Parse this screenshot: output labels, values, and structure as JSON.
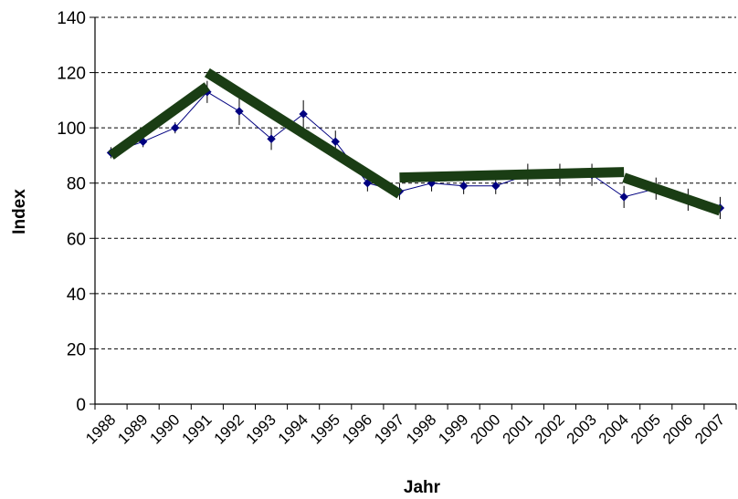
{
  "chart_data": {
    "type": "line",
    "title": "",
    "xlabel": "Jahr",
    "ylabel": "Index",
    "ylim": [
      0,
      140
    ],
    "yticks": [
      0,
      20,
      40,
      60,
      80,
      100,
      120,
      140
    ],
    "grid": "horizontal dashed",
    "categories": [
      "1988",
      "1989",
      "1990",
      "1991",
      "1992",
      "1993",
      "1994",
      "1995",
      "1996",
      "1997",
      "1998",
      "1999",
      "2000",
      "2001",
      "2002",
      "2003",
      "2004",
      "2005",
      "2006",
      "2007"
    ],
    "series": [
      {
        "values": [
          91,
          95,
          100,
          113,
          106,
          96,
          105,
          95,
          80,
          77,
          80,
          79,
          79,
          83,
          83,
          83,
          75,
          78,
          74,
          71
        ],
        "error": [
          2,
          2,
          2,
          4,
          5,
          4,
          5,
          4,
          3,
          3,
          3,
          3,
          3,
          4,
          4,
          4,
          4,
          4,
          4,
          4
        ],
        "color": "#000080",
        "marker": "diamond"
      }
    ],
    "trend_segments": [
      {
        "from": [
          "1988",
          90
        ],
        "to": [
          "1991",
          115
        ]
      },
      {
        "from": [
          "1991",
          120
        ],
        "to": [
          "1997",
          76
        ]
      },
      {
        "from": [
          "1997",
          82
        ],
        "to": [
          "2004",
          84
        ]
      },
      {
        "from": [
          "2004",
          82
        ],
        "to": [
          "2007",
          70
        ]
      }
    ],
    "trend_color": "#1a3d14",
    "grid_color": "#000000"
  }
}
